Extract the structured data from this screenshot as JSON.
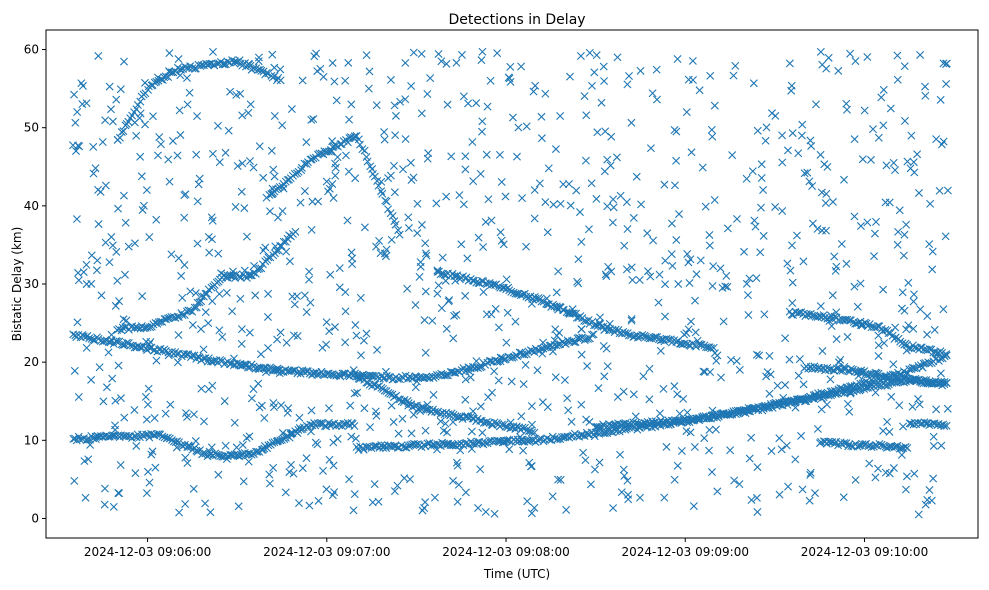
{
  "chart_data": {
    "type": "scatter",
    "title": "Detections in Delay",
    "xlabel": "Time (UTC)",
    "ylabel": "Bistatic Delay (km)",
    "xlim_seconds_after_090600": [
      -34,
      278
    ],
    "ylim": [
      -2.5,
      62.5
    ],
    "x_ticks": [
      {
        "label": "2024-12-03 09:06:00",
        "seconds_after_090600": 0
      },
      {
        "label": "2024-12-03 09:07:00",
        "seconds_after_090600": 60
      },
      {
        "label": "2024-12-03 09:08:00",
        "seconds_after_090600": 120
      },
      {
        "label": "2024-12-03 09:09:00",
        "seconds_after_090600": 180
      },
      {
        "label": "2024-12-03 09:10:00",
        "seconds_after_090600": 240
      }
    ],
    "y_ticks": [
      0,
      10,
      20,
      30,
      40,
      50,
      60
    ],
    "marker": "x",
    "color": "#1f77b4",
    "grid": false,
    "legend": "none",
    "data_range_seconds_after_090600": [
      -25,
      268
    ],
    "tracks": [
      {
        "points": [
          [
            -25,
            23.5
          ],
          [
            0,
            21.8
          ],
          [
            20,
            20.3
          ],
          [
            40,
            19.2
          ],
          [
            55,
            18.6
          ],
          [
            72,
            18.3
          ],
          [
            82,
            18.0
          ],
          [
            97,
            18.2
          ],
          [
            110,
            19.4
          ],
          [
            120,
            20.6
          ],
          [
            137,
            22.2
          ],
          [
            150,
            23.4
          ]
        ]
      },
      {
        "points": [
          [
            97,
            31.5
          ],
          [
            110,
            30.4
          ],
          [
            120,
            29.4
          ],
          [
            132,
            27.8
          ],
          [
            142,
            26.2
          ],
          [
            150,
            24.8
          ],
          [
            160,
            23.6
          ],
          [
            175,
            22.7
          ],
          [
            190,
            21.8
          ]
        ]
      },
      {
        "points": [
          [
            70,
            18.2
          ],
          [
            90,
            14.2
          ],
          [
            110,
            12.6
          ],
          [
            130,
            11.1
          ]
        ]
      },
      {
        "points": [
          [
            70,
            9.0
          ],
          [
            100,
            9.5
          ],
          [
            130,
            10.0
          ],
          [
            160,
            11.4
          ],
          [
            180,
            12.5
          ],
          [
            200,
            13.6
          ],
          [
            220,
            15.2
          ],
          [
            240,
            16.7
          ],
          [
            255,
            17.7
          ],
          [
            268,
            17.2
          ]
        ]
      },
      {
        "points": [
          [
            150,
            11.8
          ],
          [
            180,
            12.5
          ],
          [
            200,
            13.8
          ],
          [
            220,
            15.4
          ],
          [
            240,
            17.2
          ],
          [
            255,
            18.9
          ],
          [
            268,
            20.8
          ]
        ]
      },
      {
        "points": [
          [
            215,
            26.3
          ],
          [
            230,
            25.7
          ],
          [
            245,
            24.4
          ],
          [
            255,
            22.0
          ],
          [
            268,
            21.0
          ]
        ]
      },
      {
        "points": [
          [
            220,
            19.3
          ],
          [
            235,
            19.0
          ],
          [
            248,
            18.1
          ],
          [
            258,
            17.6
          ],
          [
            268,
            17.2
          ]
        ]
      },
      {
        "points": [
          [
            225,
            9.8
          ],
          [
            235,
            9.4
          ],
          [
            245,
            9.3
          ],
          [
            255,
            9.1
          ]
        ]
      },
      {
        "points": [
          [
            255,
            12.3
          ],
          [
            268,
            11.8
          ]
        ]
      },
      {
        "points": [
          [
            -25,
            10.2
          ],
          [
            -10,
            10.5
          ],
          [
            5,
            10.6
          ],
          [
            20,
            8.1
          ],
          [
            35,
            8.2
          ],
          [
            55,
            12.0
          ],
          [
            70,
            12.0
          ]
        ]
      },
      {
        "points": [
          [
            -10,
            24.2
          ],
          [
            0,
            24.6
          ],
          [
            15,
            26.6
          ],
          [
            25,
            31.0
          ],
          [
            35,
            31.0
          ],
          [
            50,
            37.0
          ]
        ]
      },
      {
        "points": [
          [
            40,
            41.0
          ],
          [
            55,
            46.0
          ],
          [
            70,
            49.0
          ],
          [
            85,
            36.0
          ]
        ]
      },
      {
        "points": [
          [
            -10,
            48.5
          ],
          [
            0,
            55.0
          ],
          [
            10,
            57.5
          ],
          [
            30,
            58.5
          ],
          [
            45,
            56.0
          ]
        ]
      }
    ]
  }
}
